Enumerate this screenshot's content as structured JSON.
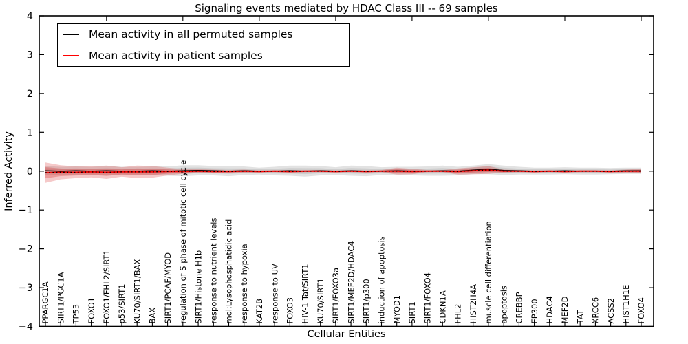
{
  "title": "Signaling events mediated by HDAC Class III -- 69 samples",
  "legend": [
    {
      "label": "Mean activity in all permuted samples",
      "color": "#000000"
    },
    {
      "label": "Mean activity in patient samples",
      "color": "#ff0000"
    }
  ],
  "chart_data": {
    "type": "line",
    "title": "Signaling events mediated by HDAC Class III -- 69 samples",
    "xlabel": "Cellular Entities",
    "ylabel": "Inferred Activity",
    "ylim": [
      -4,
      4
    ],
    "yticks": [
      -4,
      -3,
      -2,
      -1,
      0,
      1,
      2,
      3,
      4
    ],
    "grid": false,
    "legend_position": "upper left",
    "categories": [
      "PPARGC1A",
      "SIRT1/PGC1A",
      "TP53",
      "FOXO1",
      "FOXO1/FHL2/SIRT1",
      "p53/SIRT1",
      "KU70/SIRT1/BAX",
      "BAX",
      "SIRT1/PCAF/MYOD",
      "regulation of S phase of mitotic cell cycle",
      "SIRT1/Histone H1b",
      "response to nutrient levels",
      "mol:Lysophosphatidic acid",
      "response to hypoxia",
      "KAT2B",
      "response to UV",
      "FOXO3",
      "HIV-1 Tat/SIRT1",
      "KU70/SIRT1",
      "SIRT1/FOXO3a",
      "SIRT1/MEF2D/HDAC4",
      "SIRT1/p300",
      "induction of apoptosis",
      "MYOD1",
      "SIRT1",
      "SIRT1/FOXO4",
      "CDKN1A",
      "FHL2",
      "HIST2H4A",
      "muscle cell differentiation",
      "apoptosis",
      "CREBBP",
      "EP300",
      "HDAC4",
      "MEF2D",
      "TAT",
      "XRCC6",
      "ACSS2",
      "HIST1H1E",
      "FOXO4"
    ],
    "series": [
      {
        "name": "Mean activity in all permuted samples",
        "color": "#000000",
        "band_color": "#a0a0a0",
        "values": [
          0.01,
          0.0,
          0.01,
          0.0,
          0.01,
          0.0,
          0.0,
          0.01,
          0.0,
          0.01,
          0.02,
          0.01,
          0.0,
          0.01,
          0.0,
          0.0,
          0.01,
          0.0,
          0.01,
          0.0,
          0.01,
          0.0,
          0.0,
          0.01,
          0.0,
          0.0,
          0.01,
          0.0,
          0.03,
          0.05,
          0.02,
          0.01,
          0.0,
          0.0,
          0.01,
          0.0,
          0.0,
          0.0,
          0.01,
          0.01
        ],
        "band": [
          0.12,
          0.11,
          0.11,
          0.11,
          0.12,
          0.11,
          0.11,
          0.11,
          0.12,
          0.14,
          0.13,
          0.12,
          0.13,
          0.11,
          0.09,
          0.11,
          0.13,
          0.14,
          0.12,
          0.1,
          0.13,
          0.13,
          0.1,
          0.1,
          0.11,
          0.12,
          0.13,
          0.11,
          0.11,
          0.13,
          0.12,
          0.1,
          0.09,
          0.09,
          0.09,
          0.09,
          0.09,
          0.08,
          0.08,
          0.08
        ]
      },
      {
        "name": "Mean activity in patient samples",
        "color": "#ff0000",
        "band_color": "#d83030",
        "values": [
          -0.04,
          -0.03,
          -0.03,
          -0.02,
          -0.03,
          -0.02,
          -0.02,
          -0.02,
          -0.01,
          -0.01,
          0.0,
          -0.01,
          -0.01,
          0.0,
          -0.01,
          0.0,
          -0.01,
          0.0,
          0.0,
          -0.01,
          0.0,
          -0.01,
          0.0,
          0.0,
          -0.01,
          0.0,
          0.0,
          -0.01,
          0.01,
          0.03,
          0.0,
          0.0,
          -0.01,
          0.0,
          -0.01,
          0.0,
          0.0,
          -0.01,
          0.0,
          0.0
        ],
        "band": [
          0.26,
          0.18,
          0.15,
          0.14,
          0.17,
          0.12,
          0.16,
          0.15,
          0.1,
          0.06,
          0.05,
          0.05,
          0.04,
          0.04,
          0.03,
          0.03,
          0.04,
          0.03,
          0.03,
          0.03,
          0.03,
          0.03,
          0.03,
          0.09,
          0.07,
          0.03,
          0.03,
          0.08,
          0.09,
          0.1,
          0.04,
          0.03,
          0.03,
          0.03,
          0.03,
          0.03,
          0.03,
          0.03,
          0.04,
          0.06
        ]
      }
    ]
  }
}
